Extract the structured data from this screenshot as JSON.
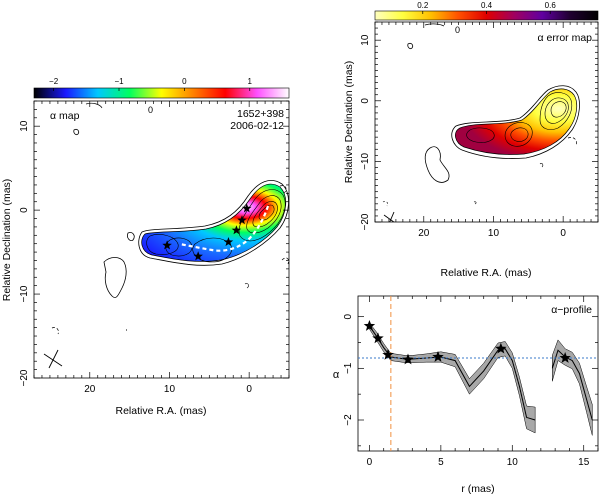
{
  "chart_data": [
    {
      "panel": "alpha-map",
      "type": "heatmap",
      "title": "α map",
      "source": "1652+398",
      "date": "2006-02-12",
      "xlabel": "Relative R.A. (mas)",
      "ylabel": "Relative Declination (mas)",
      "xlim": [
        27,
        -5
      ],
      "ylim": [
        -20,
        13
      ],
      "xticks": [
        20,
        10,
        0
      ],
      "yticks": [
        10,
        0,
        -10,
        -20
      ],
      "colorbar": {
        "min": -2.3,
        "max": 1.6,
        "ticks": [
          -2,
          -1,
          0,
          1
        ],
        "colors": [
          "#000000",
          "#1a1aff",
          "#00c8ff",
          "#00ff60",
          "#ffff00",
          "#ff8000",
          "#ff0000",
          "#ff50ff",
          "#ffffff"
        ],
        "contour_label": "0"
      },
      "components": [
        {
          "x": 0.3,
          "y": 0.2
        },
        {
          "x": 0.9,
          "y": -1.2
        },
        {
          "x": 1.6,
          "y": -2.4
        },
        {
          "x": 2.6,
          "y": -3.8
        },
        {
          "x": 6.4,
          "y": -5.5
        },
        {
          "x": 10.3,
          "y": -4.2
        }
      ]
    },
    {
      "panel": "alpha-error-map",
      "type": "heatmap",
      "title": "α error map",
      "xlabel": "Relative R.A. (mas)",
      "ylabel": "Relative Declination (mas)",
      "xlim": [
        27,
        -5
      ],
      "ylim": [
        -20,
        13
      ],
      "xticks": [
        20,
        10,
        0
      ],
      "yticks": [
        10,
        0,
        -10,
        -20
      ],
      "colorbar": {
        "min": 0.05,
        "max": 0.75,
        "ticks": [
          0.2,
          0.4,
          0.6
        ],
        "colors": [
          "#ffffc0",
          "#ffff40",
          "#ffc000",
          "#ff5000",
          "#e00000",
          "#a00060",
          "#6000a0",
          "#200030",
          "#000000"
        ],
        "contour_label": "0"
      }
    },
    {
      "panel": "alpha-profile",
      "type": "line",
      "title": "α−profile",
      "xlabel": "r (mas)",
      "ylabel": "α",
      "xlim": [
        -0.8,
        16
      ],
      "ylim": [
        -2.6,
        0.4
      ],
      "xticks": [
        0,
        5,
        10,
        15
      ],
      "yticks": [
        0,
        -1,
        -2
      ],
      "reference_alpha": -0.8,
      "core_limit_r": 1.5,
      "segments": [
        {
          "r": [
            0,
            0.5,
            1,
            1.5,
            2,
            2.5,
            3,
            4,
            5,
            6,
            7,
            8,
            9,
            9.5,
            10,
            10.5,
            11,
            11.6
          ],
          "alpha": [
            -0.18,
            -0.38,
            -0.6,
            -0.78,
            -0.8,
            -0.82,
            -0.82,
            -0.8,
            -0.78,
            -0.85,
            -1.35,
            -1.05,
            -0.65,
            -0.62,
            -0.85,
            -1.35,
            -1.95,
            -2.0
          ],
          "err": [
            0.06,
            0.08,
            0.08,
            0.07,
            0.07,
            0.07,
            0.07,
            0.08,
            0.1,
            0.12,
            0.15,
            0.15,
            0.14,
            0.14,
            0.15,
            0.18,
            0.22,
            0.25
          ]
        },
        {
          "r": [
            12.8,
            13.2,
            13.7,
            14.2,
            14.7,
            15.2,
            15.6
          ],
          "alpha": [
            -1.0,
            -0.65,
            -0.78,
            -0.85,
            -1.1,
            -1.6,
            -2.0
          ],
          "err": [
            0.25,
            0.2,
            0.16,
            0.16,
            0.2,
            0.25,
            0.3
          ]
        }
      ],
      "stars": [
        {
          "r": 0.0,
          "alpha": -0.18
        },
        {
          "r": 0.6,
          "alpha": -0.42
        },
        {
          "r": 1.3,
          "alpha": -0.74
        },
        {
          "r": 2.7,
          "alpha": -0.83
        },
        {
          "r": 4.8,
          "alpha": -0.78
        },
        {
          "r": 9.2,
          "alpha": -0.62
        },
        {
          "r": 13.7,
          "alpha": -0.8
        }
      ]
    }
  ]
}
